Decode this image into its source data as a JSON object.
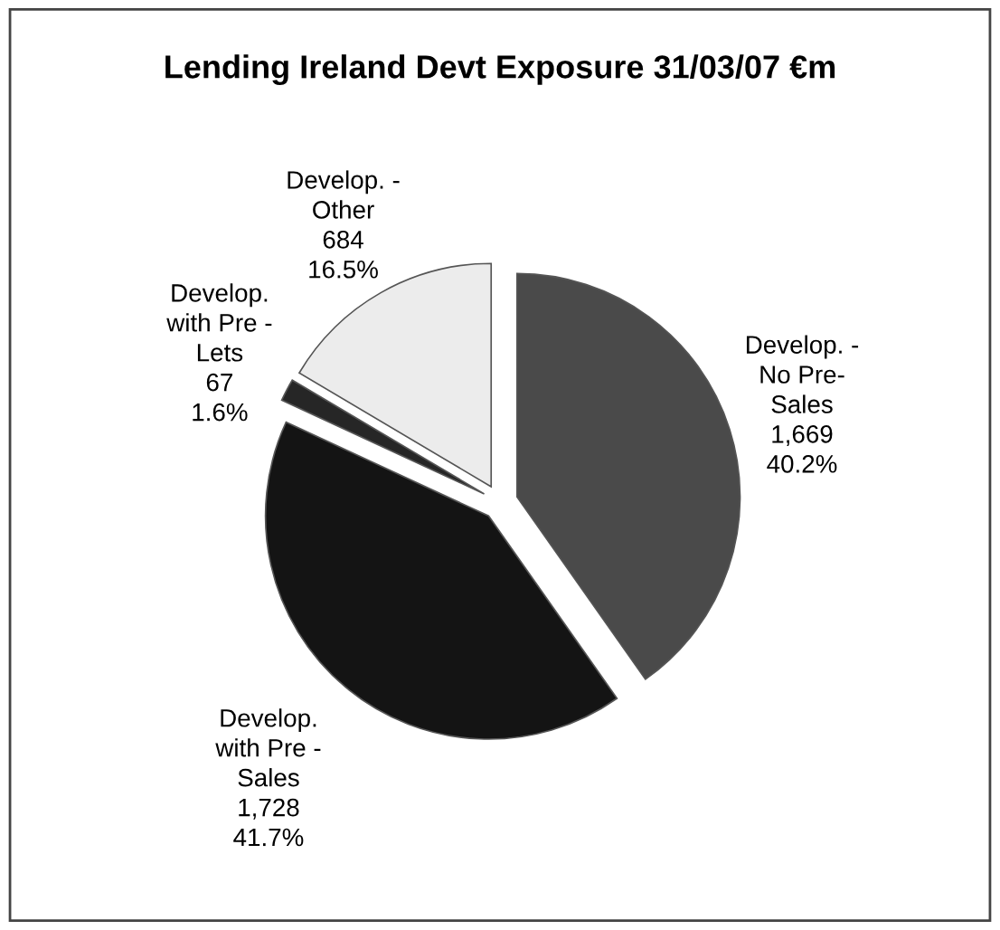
{
  "chart_data": {
    "type": "pie",
    "title": "Lending Ireland Devt Exposure 31/03/07 €m",
    "categories": [
      "Develop. -\nNo Pre-\nSales",
      "Develop.\nwith Pre -\nSales",
      "Develop.\nwith Pre -\nLets",
      "Develop. -\nOther"
    ],
    "values": [
      1669,
      1728,
      67,
      684
    ],
    "value_labels": [
      "1,669\n40.2%",
      "1,728\n41.7%",
      "67\n1.6%",
      "684\n16.5%"
    ],
    "colors": [
      "#4a4a4a",
      "#141414",
      "#262626",
      "#ececec"
    ]
  }
}
